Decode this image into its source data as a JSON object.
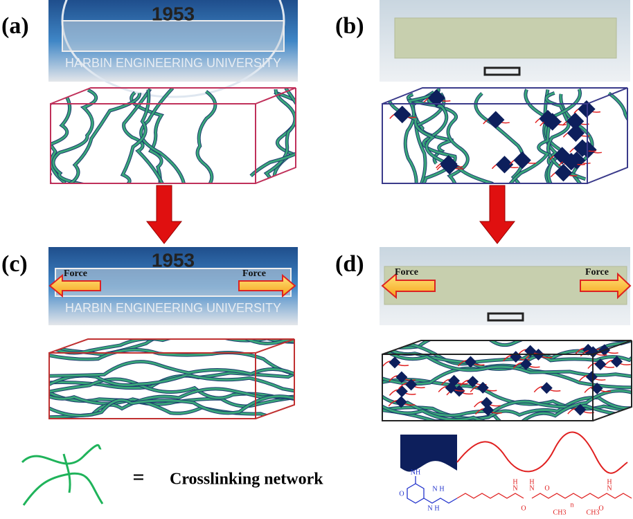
{
  "panels": [
    {
      "label": "(a)"
    },
    {
      "label": "(b)"
    },
    {
      "label": "(c)"
    },
    {
      "label": "(d)"
    }
  ],
  "photo_texts": {
    "year": "1953",
    "university": "HARBIN ENGINEERING UNIVERSITY"
  },
  "force_labels": [
    "Force",
    "Force",
    "Force",
    "Force"
  ],
  "legend": {
    "symbol": "=",
    "label": "Crosslinking network"
  },
  "chemistry": {
    "blue_labels": [
      "NH",
      "O",
      "N",
      "H",
      "N",
      "H"
    ],
    "red_labels": [
      "N",
      "H",
      "O",
      "N",
      "H",
      "O",
      "n",
      "CH3",
      "CH3",
      "O",
      "N",
      "H"
    ]
  }
}
